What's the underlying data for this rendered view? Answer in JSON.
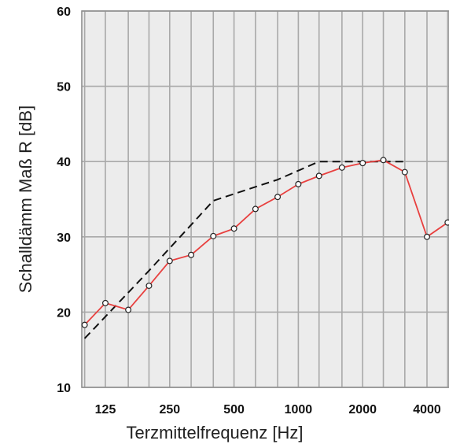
{
  "chart_data": {
    "type": "line",
    "title": "",
    "xlabel": "Terzmittelfrequenz [Hz]",
    "ylabel": "Schalldämm Maß R [dB]",
    "x_scale": "log",
    "x_tick_labels": [
      "125",
      "250",
      "500",
      "1000",
      "2000",
      "4000"
    ],
    "x_tick_values": [
      125,
      250,
      500,
      1000,
      2000,
      4000
    ],
    "y_ticks": [
      10,
      20,
      30,
      40,
      50,
      60
    ],
    "ylim": [
      10,
      60
    ],
    "xlim_band": [
      100,
      5000
    ],
    "grid": true,
    "x": [
      100,
      125,
      160,
      200,
      250,
      315,
      400,
      500,
      630,
      800,
      1000,
      1250,
      1600,
      2000,
      2500,
      3150,
      4000,
      5000
    ],
    "series": [
      {
        "color": "#e8403f",
        "style": "solid-with-markers",
        "values": [
          18.3,
          21.2,
          20.3,
          23.5,
          26.8,
          27.6,
          30.1,
          31.1,
          33.7,
          35.3,
          37.0,
          38.1,
          39.2,
          39.8,
          40.2,
          38.6,
          30.0,
          31.9
        ]
      },
      {
        "color": "#111111",
        "style": "dashed",
        "x": [
          100,
          200,
          400,
          800,
          1250,
          3150
        ],
        "values": [
          16.5,
          25.5,
          34.8,
          37.6,
          40.0,
          40.0
        ]
      }
    ]
  }
}
